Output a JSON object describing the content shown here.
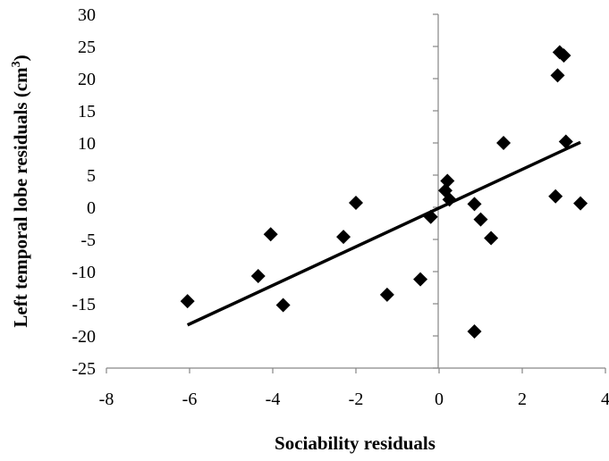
{
  "chart_data": {
    "type": "scatter",
    "title": "",
    "xlabel": "Sociability residuals",
    "ylabel": "Left temporal lobe residuals (cm",
    "ylabel_superscript": "3",
    "ylabel_suffix": ")",
    "xlim": [
      -8,
      4
    ],
    "ylim": [
      -25,
      30
    ],
    "x_ticks": [
      -8,
      -6,
      -4,
      -2,
      0,
      2,
      4
    ],
    "y_ticks": [
      -25,
      -20,
      -15,
      -10,
      -5,
      0,
      5,
      10,
      15,
      20,
      25,
      30
    ],
    "grid": false,
    "legend": "none",
    "marker": "diamond",
    "marker_color": "#000000",
    "series": [
      {
        "points": [
          {
            "x": -6.05,
            "y": -14.6
          },
          {
            "x": -4.35,
            "y": -10.7
          },
          {
            "x": -4.05,
            "y": -4.2
          },
          {
            "x": -3.75,
            "y": -15.2
          },
          {
            "x": -2.3,
            "y": -4.6
          },
          {
            "x": -2.0,
            "y": 0.7
          },
          {
            "x": -1.25,
            "y": -13.6
          },
          {
            "x": -0.45,
            "y": -11.2
          },
          {
            "x": -0.2,
            "y": -1.5
          },
          {
            "x": 0.15,
            "y": 2.6
          },
          {
            "x": 0.2,
            "y": 4.1
          },
          {
            "x": 0.25,
            "y": 1.2
          },
          {
            "x": 0.85,
            "y": 0.5
          },
          {
            "x": 0.85,
            "y": -19.3
          },
          {
            "x": 1.0,
            "y": -1.9
          },
          {
            "x": 1.25,
            "y": -4.8
          },
          {
            "x": 1.55,
            "y": 10.0
          },
          {
            "x": 2.8,
            "y": 1.7
          },
          {
            "x": 2.85,
            "y": 20.5
          },
          {
            "x": 2.9,
            "y": 24.1
          },
          {
            "x": 3.0,
            "y": 23.6
          },
          {
            "x": 3.05,
            "y": 10.2
          },
          {
            "x": 3.4,
            "y": 0.6
          }
        ]
      }
    ],
    "trendline": {
      "x": [
        -6.05,
        3.4
      ],
      "y": [
        -18.3,
        10.1
      ]
    }
  }
}
